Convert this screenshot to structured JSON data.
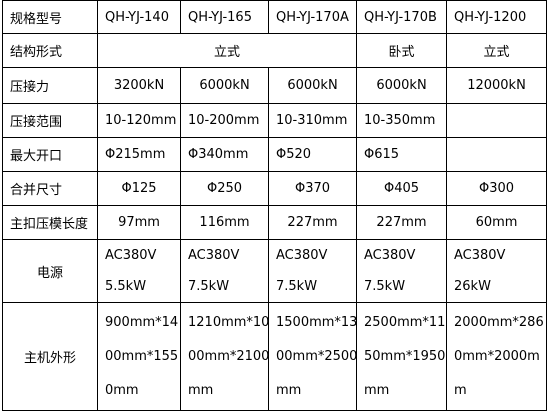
{
  "table": {
    "header": [
      "规格型号",
      "QH-YJ-140",
      "QH-YJ-165",
      "QH-YJ-170A",
      "QH-YJ-170B",
      "QH-YJ-1200"
    ],
    "rows": [
      {
        "label": "结构形式",
        "cells": [
          "立式",
          "卧式",
          "立式"
        ]
      },
      {
        "label": "压接力",
        "cells": [
          "3200kN",
          "6000kN",
          "6000kN",
          "6000kN",
          "12000kN"
        ]
      },
      {
        "label": "压接范围",
        "cells": [
          "10-120mm",
          "10-200mm",
          "10-310mm",
          "10-350mm"
        ]
      },
      {
        "label": "最大开口",
        "cells": [
          "Φ215mm",
          "Φ340mm",
          "Φ520",
          "Φ615"
        ]
      },
      {
        "label": "合并尺寸",
        "cells": [
          "Φ125",
          "Φ250",
          "Φ370",
          "Φ405",
          "Φ300"
        ]
      },
      {
        "label": "主扣压模长度",
        "cells": [
          "97mm",
          "116mm",
          "227mm",
          "227mm",
          "60mm"
        ]
      },
      {
        "label": "电源",
        "cells": [
          [
            "AC380V",
            "5.5kW"
          ],
          [
            "AC380V",
            "7.5kW"
          ],
          [
            "AC380V",
            "7.5kW"
          ],
          [
            "AC380V",
            "7.5kW"
          ],
          [
            "AC380V",
            "26kW"
          ]
        ]
      },
      {
        "label": "主机外形",
        "cells": [
          [
            "900mm*14",
            "00mm*155",
            "0mm"
          ],
          [
            "1210mm*10",
            "00mm*2100",
            "mm"
          ],
          [
            "1500mm*13",
            "00mm*2500",
            "mm"
          ],
          [
            "2500mm*11",
            "50mm*1950",
            "mm"
          ],
          [
            "2000mm*286",
            "0mm*2000m",
            "m"
          ]
        ]
      }
    ]
  }
}
